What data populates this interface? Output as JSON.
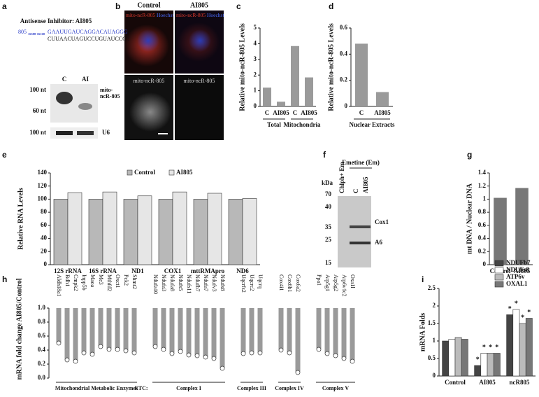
{
  "panels": {
    "a": {
      "label": "a",
      "title": "Antisense Inhibitor: AI805",
      "seq_id": "805",
      "seq_range": "16588-16168",
      "seq_top": "GAAUUGAUCAGGACAUAGGG",
      "seq_bottom": "CUUAACUAGUCCUGUAUCCC !",
      "lanes": [
        "C",
        "AI"
      ],
      "markers": [
        "100 nt",
        "60 nt",
        "100 nt"
      ],
      "probes": [
        "mito-ncR-805",
        "U6"
      ]
    },
    "b": {
      "label": "b",
      "columns": [
        "Control",
        "AI805"
      ],
      "top_labels": [
        [
          "mito-ncR-805",
          "Hoechst"
        ],
        [
          "mito-ncR-805",
          "Hoechst"
        ]
      ],
      "bottom_labels": [
        "mito-ncR-805",
        "mito-ncR-805"
      ]
    },
    "f": {
      "label": "f",
      "unit": "kDa",
      "markers": [
        "70",
        "40",
        "35",
        "25",
        "15"
      ],
      "lane_labels": [
        "Chlph+ Em",
        "C",
        "AI805"
      ],
      "treatment": "Emetine (Em)",
      "bands": [
        "Cox1",
        "A6"
      ]
    }
  },
  "chart_data": [
    {
      "type": "bar",
      "label": "c",
      "ylabel": "Relative mito-ncR-805 Levels",
      "categories": [
        "C",
        "AI805",
        "C",
        "AI805"
      ],
      "groups": [
        "Total",
        "Mitochondria"
      ],
      "values": [
        1.2,
        0.3,
        3.85,
        1.85
      ],
      "color": "#9a9a9a",
      "ylim": [
        0,
        5
      ],
      "yticks": [
        0,
        1,
        2,
        3,
        4,
        5
      ]
    },
    {
      "type": "bar",
      "label": "d",
      "ylabel": "Relative mito-ncR-805 Levels",
      "categories": [
        "C",
        "AI805"
      ],
      "groups": [
        "Nuclear Extracts"
      ],
      "values": [
        0.48,
        0.11
      ],
      "color": "#9a9a9a",
      "ylim": [
        0,
        0.6
      ],
      "yticks": [
        0,
        0.2,
        0.4,
        0.6
      ]
    },
    {
      "type": "bar",
      "label": "e",
      "ylabel": "Relative RNA Levels",
      "categories": [
        "12S rRNA",
        "16S rRNA",
        "ND1",
        "COX1",
        "mttRMApro",
        "ND6"
      ],
      "series": [
        {
          "name": "Control",
          "color": "#b8b8b8",
          "values": [
            100,
            100,
            100,
            100,
            100,
            100
          ]
        },
        {
          "name": "AI805",
          "color": "#e6e6e6",
          "values": [
            110,
            111,
            105,
            111,
            109,
            101
          ]
        }
      ],
      "legend": "top",
      "ylim": [
        0,
        140
      ],
      "yticks": [
        0,
        20,
        40,
        60,
        80,
        100,
        120,
        140
      ]
    },
    {
      "type": "bar",
      "label": "g",
      "ylabel": "mt DNA / Nuclear DNA",
      "categories": [
        "Control",
        "AI805"
      ],
      "values": [
        1.02,
        1.17
      ],
      "color": "#777777",
      "ylim": [
        0,
        1.4
      ],
      "yticks": [
        0,
        0.2,
        0.4,
        0.6,
        0.8,
        1,
        1.2,
        1.4
      ]
    },
    {
      "type": "hanging-bar",
      "label": "h",
      "ylabel": "mRNA fold change  AI805/Control",
      "prefix": "ETC:",
      "color": "#9a9a9a",
      "ylim": [
        0,
        1
      ],
      "yticks": [
        {
          "value": 0,
          "label": "0.0"
        },
        0.2,
        0.4,
        0.6,
        0.8,
        {
          "value": 1,
          "label": "1.0"
        }
      ],
      "groups": [
        {
          "name": "Mitochondrial Metabolic Enzymes",
          "categories": [
            "Aldh18a1",
            "Bdh1",
            "Cmpk2",
            "Inpp5b",
            "Maoa",
            "Me3",
            "Mthfd2",
            "Oxct1",
            "Pck2",
            "Shmt2"
          ],
          "values": [
            0.5,
            0.26,
            0.24,
            0.36,
            0.34,
            0.45,
            0.41,
            0.41,
            0.39,
            0.36
          ]
        },
        {
          "name": "Complex I",
          "categories": [
            "Ndufa10",
            "Ndufa3",
            "Ndufa8",
            "Ndufs5",
            "Ndufs11",
            "Ndufb7",
            "Ndufa7",
            "Ndufv3",
            "Ndufs8"
          ],
          "values": [
            0.45,
            0.41,
            0.35,
            0.38,
            0.33,
            0.32,
            0.3,
            0.28,
            0.14
          ]
        },
        {
          "name": "Complex III",
          "categories": [
            "Uqcrfs2",
            "Uqcrc2",
            "Uqcrq"
          ],
          "values": [
            0.35,
            0.36,
            0.36
          ]
        },
        {
          "name": "Complex IV",
          "categories": [
            "Cox4i1",
            "Cox6b1",
            "Cox6a2"
          ],
          "values": [
            0.4,
            0.36,
            0.08
          ]
        },
        {
          "name": "Complex V",
          "categories": [
            "Ppa1",
            "Atp5g1",
            "Atp5g2",
            "Atp6v1c2",
            "Oxa1l"
          ],
          "values": [
            0.41,
            0.35,
            0.32,
            0.28,
            0.24
          ]
        }
      ]
    },
    {
      "type": "bar",
      "label": "i",
      "ylabel": "mRNA Folds",
      "categories": [
        "Control",
        "AI805",
        "ncR805"
      ],
      "series": [
        {
          "name": "NDUFb7",
          "color": "#444444",
          "values": [
            1.0,
            0.3,
            1.75
          ],
          "labels": [
            null,
            "*",
            "*"
          ]
        },
        {
          "name": "NDUFs8",
          "color": "#ffffff",
          "values": [
            1.05,
            0.65,
            1.9
          ],
          "labels": [
            null,
            "*",
            "*"
          ]
        },
        {
          "name": "ATP6v",
          "color": "#bbbbbb",
          "values": [
            1.1,
            0.65,
            1.5
          ],
          "labels": [
            null,
            "*",
            "*"
          ]
        },
        {
          "name": "OXAL1",
          "color": "#777777",
          "values": [
            1.05,
            0.65,
            1.65
          ],
          "labels": [
            null,
            "*",
            "*"
          ]
        }
      ],
      "legend": "top-right",
      "ylim": [
        0,
        2.5
      ],
      "yticks": [
        0,
        0.5,
        1,
        1.5,
        2,
        2.5
      ]
    }
  ]
}
